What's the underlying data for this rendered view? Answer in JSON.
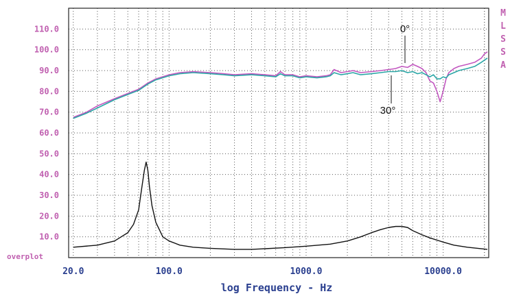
{
  "chart_data": {
    "type": "line",
    "xlabel": "log Frequency - Hz",
    "xscale": "log",
    "xlim": [
      18.5,
      21500
    ],
    "ylim": [
      0,
      120
    ],
    "grid": true,
    "yticks": [
      {
        "value": 10,
        "label": "10.0"
      },
      {
        "value": 20,
        "label": "20.0"
      },
      {
        "value": 30,
        "label": "30.0"
      },
      {
        "value": 40,
        "label": "40.0"
      },
      {
        "value": 50,
        "label": "50.0"
      },
      {
        "value": 60,
        "label": "60.0"
      },
      {
        "value": 70,
        "label": "70.0"
      },
      {
        "value": 80,
        "label": "80.0"
      },
      {
        "value": 90,
        "label": "90.0"
      },
      {
        "value": 100,
        "label": "100.0"
      },
      {
        "value": 110,
        "label": "110.0"
      }
    ],
    "xticks": [
      {
        "value": 20,
        "label": "20.0"
      },
      {
        "value": 100,
        "label": "100.0"
      },
      {
        "value": 1000,
        "label": "1000.0"
      },
      {
        "value": 10000,
        "label": "10000.0"
      }
    ],
    "bottom_label": "overplot",
    "legend_letters": [
      "M",
      "L",
      "S",
      "S",
      "A"
    ],
    "annotations": [
      {
        "text": "0°",
        "x": 5000,
        "y": 102
      },
      {
        "text": "30°",
        "x": 3800,
        "y": 64
      }
    ],
    "series": [
      {
        "color": "#c257c0",
        "x": [
          20,
          25,
          30,
          40,
          50,
          60,
          70,
          80,
          100,
          120,
          150,
          200,
          250,
          300,
          400,
          500,
          600,
          650,
          700,
          800,
          900,
          1000,
          1200,
          1400,
          1500,
          1600,
          1800,
          2000,
          2200,
          2500,
          3000,
          3500,
          4000,
          4500,
          5000,
          5500,
          6000,
          6500,
          7000,
          7500,
          8000,
          8500,
          9000,
          9500,
          10000,
          10500,
          11000,
          12000,
          13000,
          15000,
          17000,
          19000,
          20000,
          21000
        ],
        "y": [
          67.5,
          70,
          73,
          76.5,
          79,
          81,
          84,
          86,
          88,
          89,
          89.5,
          89,
          88.5,
          88,
          88.5,
          88,
          87.5,
          89.5,
          88,
          88,
          87,
          87.5,
          87,
          87.5,
          88,
          90.5,
          89,
          89.5,
          90,
          89,
          89.5,
          90,
          90.5,
          91,
          92,
          91.5,
          93,
          92,
          91,
          89,
          85,
          84,
          80,
          75,
          80,
          86,
          89,
          91,
          92,
          93,
          94,
          96,
          98,
          99
        ]
      },
      {
        "color": "#2aa6a6",
        "x": [
          20,
          25,
          30,
          40,
          50,
          60,
          70,
          80,
          100,
          120,
          150,
          200,
          250,
          300,
          400,
          500,
          600,
          650,
          700,
          800,
          900,
          1000,
          1200,
          1400,
          1500,
          1600,
          1800,
          2000,
          2200,
          2500,
          3000,
          3500,
          4000,
          4500,
          5000,
          5500,
          6000,
          6500,
          7000,
          7500,
          8000,
          8500,
          9000,
          9500,
          10000,
          10500,
          11000,
          12000,
          13000,
          15000,
          17000,
          19000,
          20000,
          21000
        ],
        "y": [
          67,
          69.5,
          72,
          76,
          78.5,
          80.5,
          83.5,
          85.5,
          87.5,
          88.5,
          89,
          88.5,
          88,
          87.5,
          88,
          87.5,
          87,
          88.5,
          87.5,
          87.5,
          86.5,
          87,
          86.5,
          87,
          87.5,
          89,
          88,
          88.5,
          89,
          88,
          88.5,
          89,
          89.5,
          89.5,
          90,
          89,
          89.5,
          88.5,
          89,
          88,
          87,
          88,
          86,
          86,
          87,
          86.5,
          88,
          89,
          90,
          91,
          92,
          94,
          95,
          96
        ]
      },
      {
        "color": "#111111",
        "x": [
          20,
          30,
          40,
          50,
          55,
          60,
          63,
          66,
          68,
          70,
          72,
          75,
          80,
          90,
          100,
          120,
          150,
          200,
          300,
          400,
          500,
          700,
          1000,
          1500,
          2000,
          2500,
          3000,
          3500,
          4000,
          4500,
          5000,
          5500,
          6000,
          7000,
          8000,
          10000,
          12000,
          15000,
          21000
        ],
        "y": [
          5,
          6,
          8,
          12,
          16,
          23,
          33,
          42,
          46,
          42,
          34,
          25,
          17,
          10,
          8,
          6,
          5,
          4.5,
          4,
          4,
          4.3,
          4.8,
          5.5,
          6.5,
          8,
          10,
          12,
          13.5,
          14.5,
          15,
          15,
          14.5,
          13,
          11,
          9.5,
          7.5,
          6,
          5,
          4
        ]
      }
    ]
  }
}
